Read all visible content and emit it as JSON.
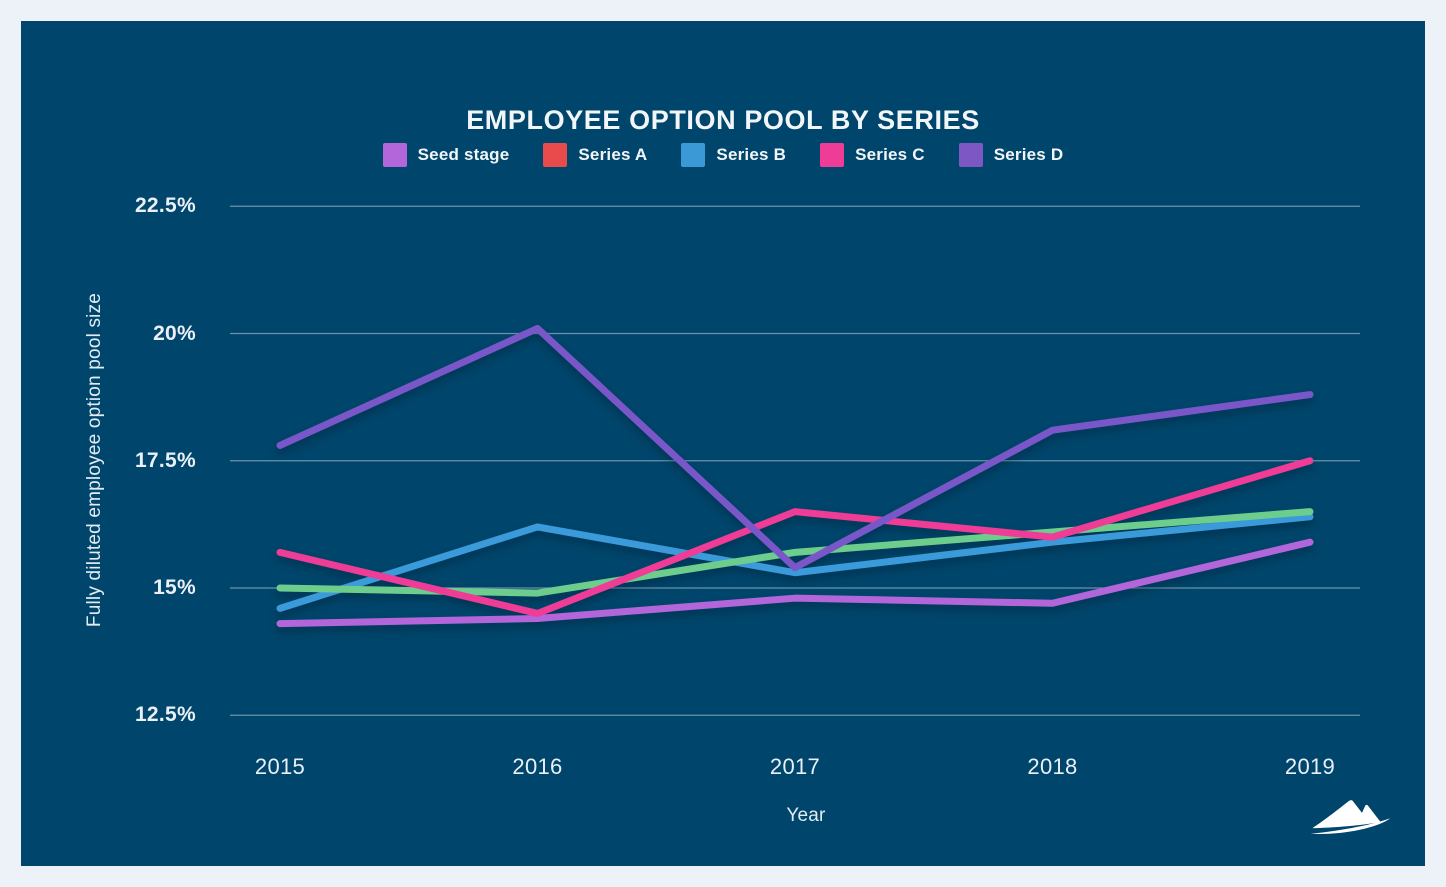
{
  "palette": {
    "page_bg": "#edf1f8",
    "card_bg": "#00456b",
    "text_color": "#f2f6f9",
    "grid_color": "rgba(255,255,255,0.42)",
    "logo_color": "#ffffff"
  },
  "chart_data": {
    "type": "line",
    "title": "EMPLOYEE OPTION POOL BY SERIES",
    "xlabel": "Year",
    "ylabel": "Fully diluted employee option pool size",
    "x": [
      2015,
      2016,
      2017,
      2018,
      2019
    ],
    "x_tick_labels": [
      "2015",
      "2016",
      "2017",
      "2018",
      "2019"
    ],
    "y_axis": {
      "ticks": [
        {
          "value": 22.5,
          "label": "22.5%"
        },
        {
          "value": 20,
          "label": "20%"
        },
        {
          "value": 17.5,
          "label": "17.5%"
        },
        {
          "value": 15,
          "label": "15%"
        },
        {
          "value": 12.5,
          "label": "12.5%"
        }
      ],
      "ylim": [
        12.5,
        22.5
      ],
      "unit": "percent"
    },
    "grid": "horizontal",
    "legend_position": "top-center",
    "series": [
      {
        "name": "Seed stage",
        "legend_color": "#b266d9",
        "line_color": "#b266d9",
        "values": [
          14.3,
          14.4,
          14.8,
          14.7,
          15.9
        ]
      },
      {
        "name": "Series A",
        "legend_color": "#e94b4d",
        "line_color": "#6dcd8d",
        "values": [
          15.0,
          14.9,
          15.7,
          16.1,
          16.5
        ]
      },
      {
        "name": "Series B",
        "legend_color": "#3b9ad6",
        "line_color": "#3b9ad9",
        "values": [
          14.6,
          16.2,
          15.3,
          15.9,
          16.4
        ]
      },
      {
        "name": "Series C",
        "legend_color": "#ee3c97",
        "line_color": "#ee3c97",
        "values": [
          15.7,
          14.5,
          16.5,
          16.0,
          17.5
        ]
      },
      {
        "name": "Series D",
        "legend_color": "#7d57c3",
        "line_color": "#7a57c8",
        "values": [
          17.8,
          20.1,
          15.4,
          18.1,
          18.8
        ]
      }
    ]
  }
}
